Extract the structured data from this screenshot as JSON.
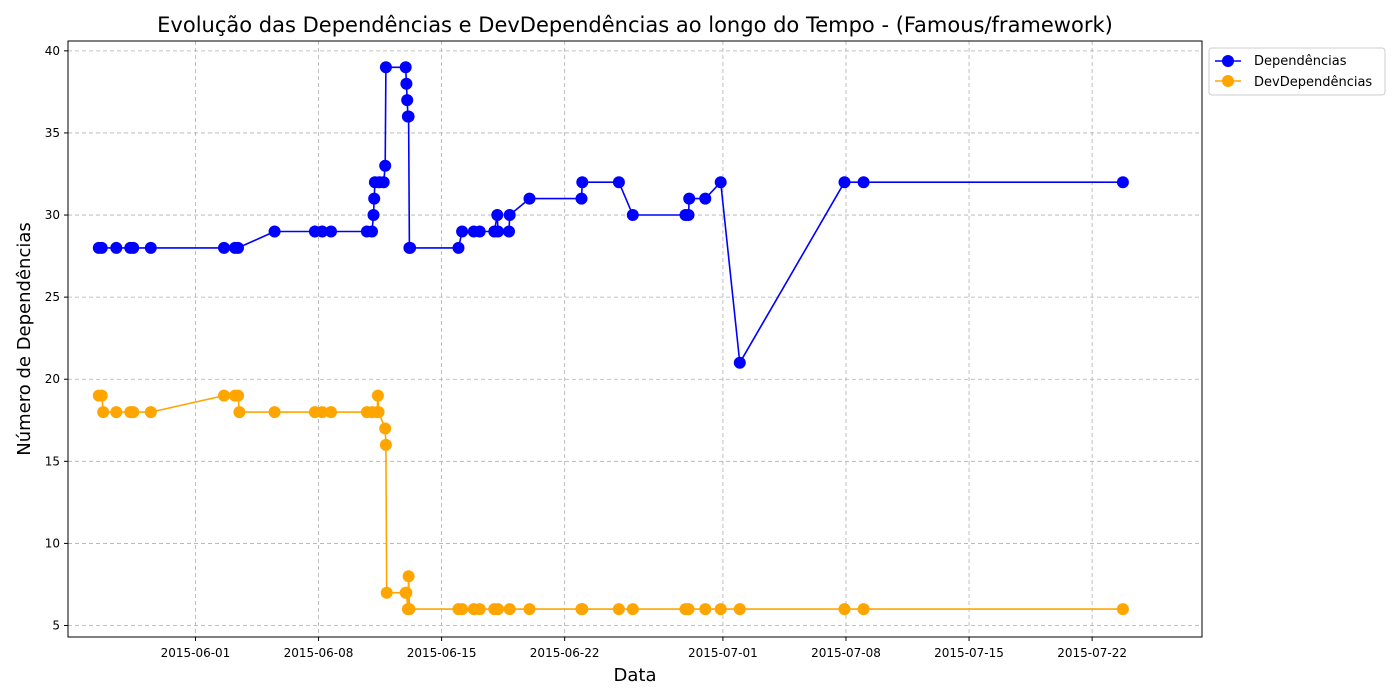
{
  "chart_data": {
    "type": "line",
    "title": "Evolução das Dependências e DevDependências ao longo do Tempo - (Famous/framework)",
    "xlabel": "Data",
    "ylabel": "Número de Dependências",
    "xlim": [
      "2015-05-24T18:00",
      "2015-07-28T06:00"
    ],
    "ylim": [
      4.3,
      40.6
    ],
    "x_ticks": [
      "2015-06-01",
      "2015-06-08",
      "2015-06-15",
      "2015-06-22",
      "2015-07-01",
      "2015-07-08",
      "2015-07-15",
      "2015-07-22"
    ],
    "y_ticks": [
      5,
      10,
      15,
      20,
      25,
      30,
      35,
      40
    ],
    "grid": true,
    "legend_position": "top-right-outside",
    "series": [
      {
        "name": "Dependências",
        "color": "#0000ff",
        "points": [
          [
            "2015-05-26T12:00",
            28
          ],
          [
            "2015-05-26T16:00",
            28
          ],
          [
            "2015-05-27T12:00",
            28
          ],
          [
            "2015-05-28T07:00",
            28
          ],
          [
            "2015-05-28T11:00",
            28
          ],
          [
            "2015-05-29T11:00",
            28
          ],
          [
            "2015-06-02T15:00",
            28
          ],
          [
            "2015-06-03T06:00",
            28
          ],
          [
            "2015-06-03T10:00",
            28
          ],
          [
            "2015-06-05T12:00",
            29
          ],
          [
            "2015-06-07T19:00",
            29
          ],
          [
            "2015-06-08T05:00",
            29
          ],
          [
            "2015-06-08T17:00",
            29
          ],
          [
            "2015-06-10T18:00",
            29
          ],
          [
            "2015-06-11T01:00",
            29
          ],
          [
            "2015-06-11T03:00",
            30
          ],
          [
            "2015-06-11T04:00",
            31
          ],
          [
            "2015-06-11T05:00",
            32
          ],
          [
            "2015-06-11T11:00",
            32
          ],
          [
            "2015-06-11T17:00",
            32
          ],
          [
            "2015-06-11T19:00",
            33
          ],
          [
            "2015-06-11T20:00",
            39
          ],
          [
            "2015-06-12T23:00",
            39
          ],
          [
            "2015-06-13T00:00",
            38
          ],
          [
            "2015-06-13T01:00",
            37
          ],
          [
            "2015-06-13T02:00",
            36
          ],
          [
            "2015-06-13T03:00",
            36
          ],
          [
            "2015-06-13T04:00",
            28
          ],
          [
            "2015-06-13T05:00",
            28
          ],
          [
            "2015-06-15T23:00",
            28
          ],
          [
            "2015-06-16T04:00",
            29
          ],
          [
            "2015-06-16T20:00",
            29
          ],
          [
            "2015-06-17T04:00",
            29
          ],
          [
            "2015-06-18T00:00",
            29
          ],
          [
            "2015-06-18T04:00",
            30
          ],
          [
            "2015-06-18T05:00",
            29
          ],
          [
            "2015-06-18T20:00",
            29
          ],
          [
            "2015-06-18T21:00",
            30
          ],
          [
            "2015-06-20T00:00",
            31
          ],
          [
            "2015-06-22T23:00",
            31
          ],
          [
            "2015-06-23T00:00",
            32
          ],
          [
            "2015-06-25T02:00",
            32
          ],
          [
            "2015-06-25T21:00",
            30
          ],
          [
            "2015-06-28T21:00",
            30
          ],
          [
            "2015-06-29T01:00",
            30
          ],
          [
            "2015-06-29T02:00",
            31
          ],
          [
            "2015-06-30T00:00",
            31
          ],
          [
            "2015-06-30T21:00",
            32
          ],
          [
            "2015-07-01T23:00",
            21
          ],
          [
            "2015-07-07T22:00",
            32
          ],
          [
            "2015-07-09T00:00",
            32
          ],
          [
            "2015-07-23T18:00",
            32
          ]
        ]
      },
      {
        "name": "DevDependências",
        "color": "#ffa500",
        "points": [
          [
            "2015-05-26T12:00",
            19
          ],
          [
            "2015-05-26T16:00",
            19
          ],
          [
            "2015-05-26T18:00",
            18
          ],
          [
            "2015-05-27T12:00",
            18
          ],
          [
            "2015-05-28T07:00",
            18
          ],
          [
            "2015-05-28T11:00",
            18
          ],
          [
            "2015-05-29T11:00",
            18
          ],
          [
            "2015-06-02T15:00",
            19
          ],
          [
            "2015-06-03T06:00",
            19
          ],
          [
            "2015-06-03T10:00",
            19
          ],
          [
            "2015-06-03T12:00",
            18
          ],
          [
            "2015-06-05T12:00",
            18
          ],
          [
            "2015-06-07T19:00",
            18
          ],
          [
            "2015-06-08T05:00",
            18
          ],
          [
            "2015-06-08T17:00",
            18
          ],
          [
            "2015-06-10T18:00",
            18
          ],
          [
            "2015-06-11T01:00",
            18
          ],
          [
            "2015-06-11T08:00",
            18
          ],
          [
            "2015-06-11T09:00",
            19
          ],
          [
            "2015-06-11T10:00",
            18
          ],
          [
            "2015-06-11T19:00",
            17
          ],
          [
            "2015-06-11T20:00",
            16
          ],
          [
            "2015-06-11T21:00",
            7
          ],
          [
            "2015-06-12T23:00",
            7
          ],
          [
            "2015-06-13T00:00",
            7
          ],
          [
            "2015-06-13T02:00",
            6
          ],
          [
            "2015-06-13T03:00",
            8
          ],
          [
            "2015-06-13T04:00",
            6
          ],
          [
            "2015-06-15T23:00",
            6
          ],
          [
            "2015-06-16T04:00",
            6
          ],
          [
            "2015-06-16T20:00",
            6
          ],
          [
            "2015-06-17T04:00",
            6
          ],
          [
            "2015-06-18T00:00",
            6
          ],
          [
            "2015-06-18T05:00",
            6
          ],
          [
            "2015-06-18T21:00",
            6
          ],
          [
            "2015-06-20T00:00",
            6
          ],
          [
            "2015-06-22T23:00",
            6
          ],
          [
            "2015-06-23T00:00",
            6
          ],
          [
            "2015-06-25T02:00",
            6
          ],
          [
            "2015-06-25T21:00",
            6
          ],
          [
            "2015-06-28T21:00",
            6
          ],
          [
            "2015-06-29T01:00",
            6
          ],
          [
            "2015-06-30T00:00",
            6
          ],
          [
            "2015-06-30T21:00",
            6
          ],
          [
            "2015-07-01T23:00",
            6
          ],
          [
            "2015-07-07T22:00",
            6
          ],
          [
            "2015-07-09T00:00",
            6
          ],
          [
            "2015-07-23T18:00",
            6
          ]
        ]
      }
    ]
  }
}
